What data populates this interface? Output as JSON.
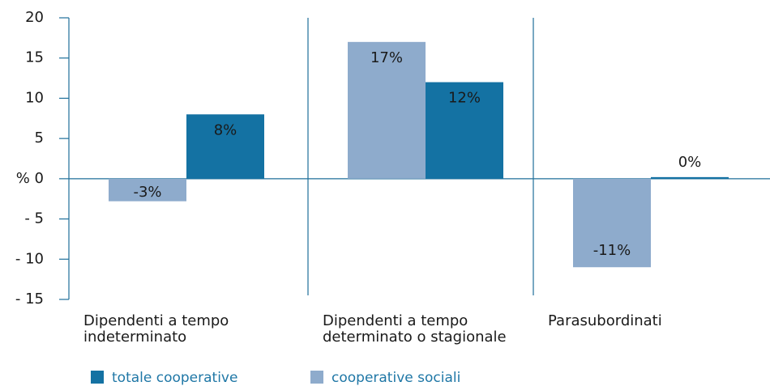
{
  "chart_data": {
    "type": "bar",
    "categories": [
      [
        "Dipendenti a tempo",
        "indeterminato"
      ],
      [
        "Dipendenti a tempo",
        "determinato o stagionale"
      ],
      [
        "Parasubordinati"
      ]
    ],
    "series": [
      {
        "name": "totale cooperative",
        "color": "#1472a3",
        "values": [
          8,
          12,
          0.2
        ],
        "value_labels": [
          "8%",
          "12%",
          "0%"
        ]
      },
      {
        "name": "cooperative sociali",
        "color": "#8eabcc",
        "values": [
          -2.8,
          17,
          -11
        ],
        "value_labels": [
          "-3%",
          "17%",
          "-11%"
        ]
      }
    ],
    "ylim": [
      -15,
      20
    ],
    "yticks": [
      {
        "value": -15,
        "label": "- 15"
      },
      {
        "value": -10,
        "label": "- 10"
      },
      {
        "value": -5,
        "label": "- 5"
      },
      {
        "value": 0,
        "label": "% 0"
      },
      5,
      10,
      15,
      20
    ]
  }
}
